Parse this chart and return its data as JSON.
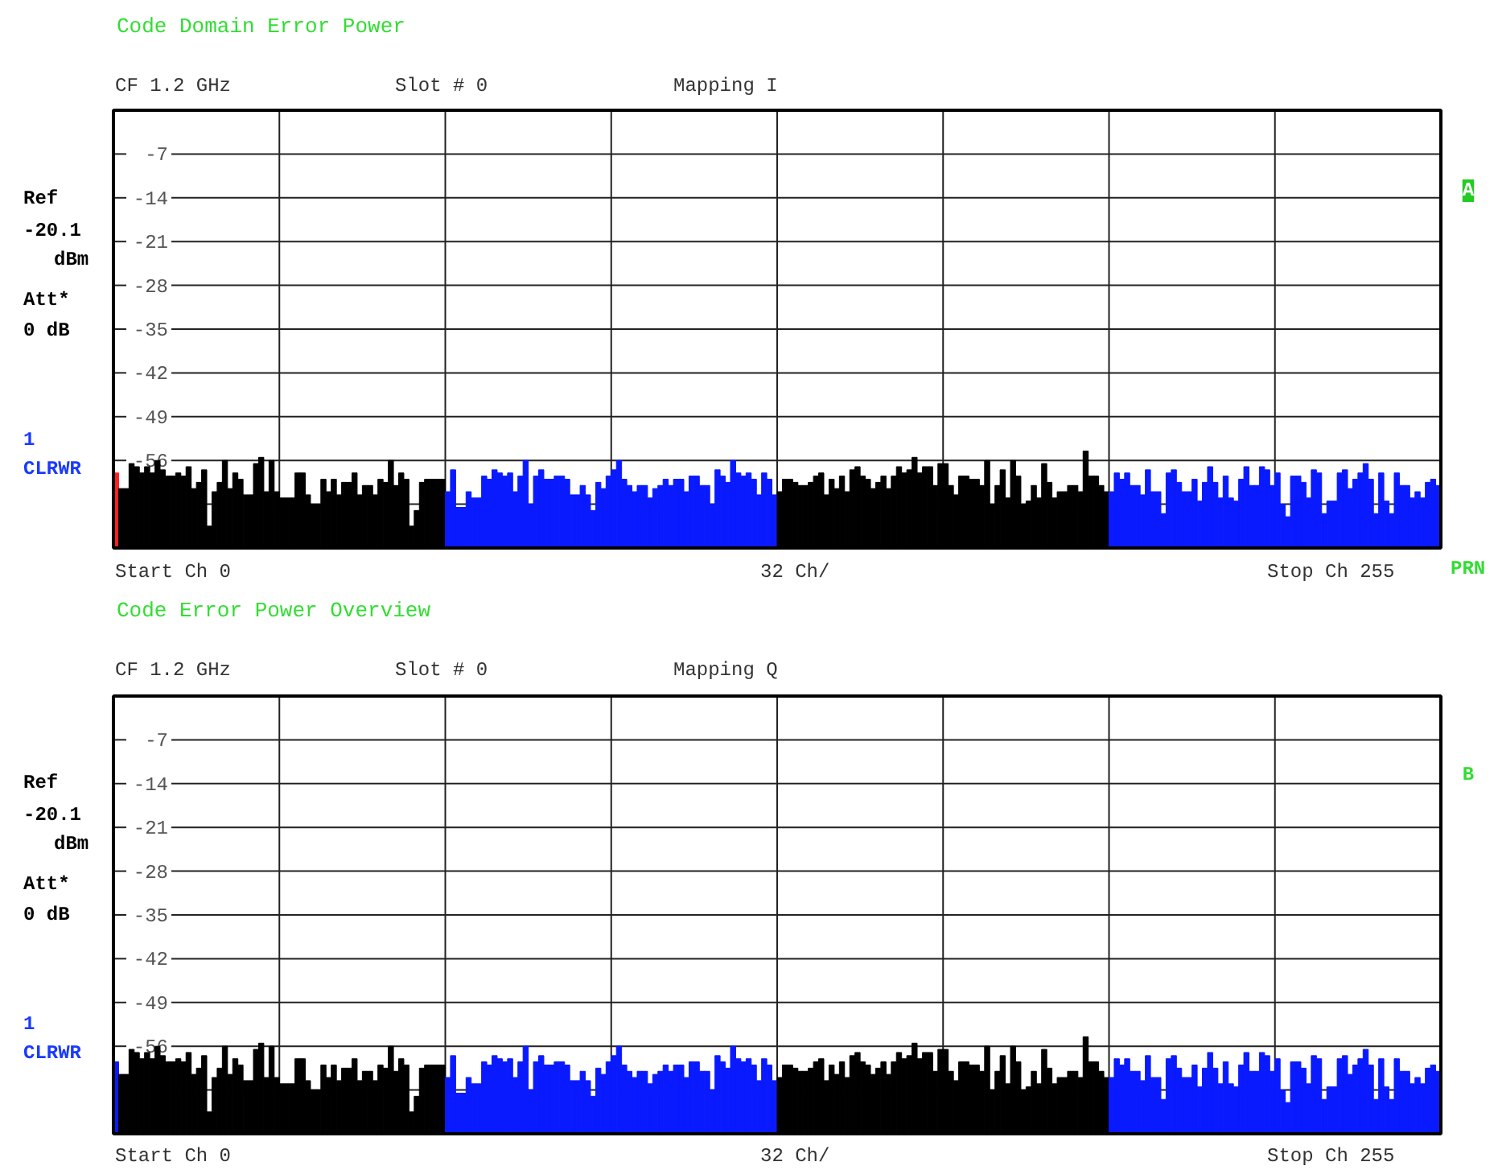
{
  "chart_data": [
    {
      "type": "bar",
      "title": "Code Domain Error Power",
      "annotations": [
        "CF 1.2 GHz",
        "Slot # 0",
        "Mapping    I",
        "Ref",
        "-20.1",
        "dBm",
        "Att*",
        "0 dB",
        "1",
        "CLRWR",
        "Start Ch 0",
        "32 Ch/",
        "Stop Ch 255",
        "A",
        "PRN"
      ],
      "categories": [
        null,
        null,
        null,
        null,
        null,
        null,
        null,
        null,
        null,
        null,
        null,
        null,
        null,
        null,
        null,
        null,
        null,
        null,
        null,
        null,
        null,
        null,
        null,
        null,
        null,
        null,
        null,
        null,
        null,
        null,
        null,
        null,
        null,
        null,
        null,
        null,
        null,
        null,
        null,
        null,
        null,
        null,
        null,
        null,
        null,
        null,
        null,
        null,
        null,
        null,
        null,
        null,
        null,
        null,
        null,
        null,
        null,
        null,
        null,
        null,
        null,
        null,
        null,
        null,
        null,
        null,
        null,
        null,
        null,
        null,
        null,
        null,
        null,
        null,
        null,
        null,
        null,
        null,
        null,
        null,
        null,
        null,
        null,
        null,
        null,
        null,
        null,
        null,
        null,
        null,
        null,
        null,
        null,
        null,
        null,
        null,
        null,
        null,
        null,
        null,
        null,
        null,
        null,
        null,
        null,
        null,
        null,
        null,
        null,
        null,
        null,
        null,
        null,
        null,
        null,
        null,
        null,
        null,
        null,
        null,
        null,
        null,
        null,
        null,
        null,
        null,
        null,
        null,
        null,
        null,
        null,
        null,
        null,
        null,
        null,
        null,
        null,
        null,
        null,
        null,
        null,
        null,
        null,
        null,
        null,
        null,
        null,
        null,
        null,
        null,
        null,
        null,
        null,
        null,
        null,
        null,
        null,
        null,
        null,
        null,
        null,
        null,
        null,
        null,
        null,
        null,
        null,
        null,
        null,
        null,
        null,
        null,
        null,
        null,
        null,
        null,
        null,
        null,
        null,
        null,
        null,
        null,
        null,
        null,
        null,
        null,
        null,
        null,
        null,
        null,
        null,
        null,
        null,
        null,
        null,
        null,
        null,
        null,
        null,
        null,
        null,
        null,
        null,
        null,
        null,
        null,
        null,
        null,
        null,
        null,
        null,
        null,
        null,
        null,
        null,
        null,
        null,
        null,
        null,
        null,
        null,
        null,
        null,
        null,
        null,
        null,
        null,
        null,
        null,
        null,
        null,
        null,
        null,
        null,
        null,
        null,
        null,
        null,
        null,
        null,
        null,
        null,
        null,
        null,
        null,
        null,
        null,
        null,
        null,
        null,
        null,
        null,
        null,
        null,
        null,
        null
      ],
      "base": [
        -70,
        -70,
        -70,
        -70,
        -70,
        -70,
        -70,
        -70,
        -70,
        -70,
        -70,
        -70,
        -70,
        -70,
        -70,
        -70,
        -70,
        -70,
        -70,
        -70,
        -70,
        -70,
        -70,
        -70,
        -70,
        -70,
        -70,
        -70,
        -70,
        -70,
        -70,
        -70,
        -70,
        -70,
        -70,
        -70,
        -70,
        -70,
        -70,
        -70,
        -70,
        -70,
        -70,
        -70,
        -70,
        -70,
        -70,
        -70,
        -70,
        -70,
        -70,
        -70,
        -70,
        -70,
        -70,
        -70,
        -70,
        -70,
        -70,
        -70,
        -70,
        -70,
        -70,
        -70,
        -70,
        -70,
        -70,
        -70,
        -70,
        -70,
        -70,
        -70,
        -70,
        -70,
        -70,
        -70,
        -70,
        -70,
        -70,
        -70,
        -70,
        -70,
        -70,
        -70,
        -70,
        -70,
        -70,
        -70,
        -70,
        -70,
        -70,
        -70,
        -70,
        -70,
        -70,
        -70,
        -70,
        -70,
        -70,
        -70,
        -70,
        -70,
        -70,
        -70,
        -70,
        -70,
        -70,
        -70,
        -70,
        -70,
        -70,
        -70,
        -70,
        -70,
        -70,
        -70,
        -70,
        -70,
        -70,
        -70,
        -70,
        -70,
        -70,
        -70,
        -70,
        -70,
        -70,
        -70,
        -70,
        -70,
        -70,
        -70,
        -70,
        -70,
        -70,
        -70,
        -70,
        -70,
        -70,
        -70,
        -70,
        -70,
        -70,
        -70,
        -70,
        -70,
        -70,
        -70,
        -70,
        -70,
        -70,
        -70,
        -70,
        -70,
        -70,
        -70,
        -70,
        -70,
        -70,
        -70,
        -70,
        -70,
        -70,
        -70,
        -70,
        -70,
        -70,
        -70,
        -70,
        -70,
        -70,
        -70,
        -70,
        -70,
        -70,
        -70,
        -70,
        -70,
        -70,
        -70,
        -70,
        -70,
        -70,
        -70,
        -70,
        -70,
        -70,
        -70,
        -70,
        -70,
        -70,
        -70,
        -70,
        -70,
        -70,
        -70,
        -70,
        -70,
        -70,
        -70,
        -70,
        -70,
        -70,
        -70,
        -70,
        -70,
        -70,
        -70,
        -70,
        -70,
        -70,
        -70,
        -70,
        -70,
        -70,
        -70,
        -70,
        -70,
        -70,
        -70,
        -70,
        -70,
        -70,
        -70,
        -70,
        -70,
        -70,
        -70,
        -70,
        -70,
        -70,
        -70,
        -70,
        -70,
        -70,
        -70,
        -70,
        -70,
        -70,
        -70,
        -70,
        -70,
        -70,
        -70,
        -70,
        -70,
        -70,
        -70,
        -70,
        -70,
        -70,
        -70,
        -70,
        -70,
        -70,
        -70
      ],
      "values": [
        12,
        9.5,
        9.5,
        13.5,
        13,
        12,
        13,
        12,
        14,
        12.5,
        11.5,
        11.5,
        12,
        11.5,
        13,
        9.5,
        10.5,
        12.5,
        3.5,
        9,
        10.5,
        14,
        9.5,
        12,
        11,
        8.5,
        8.5,
        13.5,
        14.5,
        9,
        14,
        9,
        8,
        8,
        8,
        12,
        12,
        8.5,
        7,
        7,
        11,
        9,
        11,
        8.5,
        10.5,
        10.5,
        12,
        8.5,
        10,
        10,
        8.5,
        11,
        10.5,
        14,
        10,
        12,
        11,
        3.5,
        6,
        10.5,
        11,
        11,
        11,
        11,
        9,
        12.5,
        6.5,
        6.5,
        9,
        8,
        8,
        11.5,
        11,
        12.5,
        12,
        11.5,
        12,
        9,
        11.5,
        14,
        7,
        11.5,
        12.5,
        11,
        11,
        11.5,
        11.5,
        11,
        8.5,
        8.5,
        10,
        8.5,
        6,
        10.5,
        9.5,
        11.5,
        12.5,
        14,
        11,
        10,
        9,
        10,
        10,
        8,
        9.5,
        10,
        11,
        10,
        11,
        11,
        9,
        11.5,
        11.5,
        10,
        10,
        7,
        12.5,
        11.5,
        10.5,
        14,
        12,
        11.5,
        12,
        11,
        8.5,
        12,
        11,
        8.5,
        9,
        11,
        11,
        10.5,
        10,
        10,
        10.5,
        11.5,
        12,
        8.5,
        11,
        9.5,
        11.5,
        9,
        12.5,
        13,
        11.5,
        11,
        9.5,
        10.5,
        11.5,
        9.5,
        11.5,
        13,
        12,
        12.5,
        14.5,
        12,
        13,
        13,
        10,
        13.5,
        13.5,
        10,
        8.5,
        11.5,
        11.5,
        11,
        11,
        10,
        14,
        7,
        10,
        12.5,
        8,
        14,
        11.5,
        7,
        7.5,
        10,
        8,
        13.5,
        10.5,
        8,
        9,
        9,
        10,
        10,
        9,
        15.5,
        11.5,
        11.5,
        10,
        9,
        9,
        12,
        11,
        12,
        10,
        10,
        8.5,
        12.5,
        9,
        9,
        5.5,
        12,
        12.5,
        10.5,
        9,
        9,
        11,
        7.5,
        10.5,
        13,
        10.5,
        8,
        11.5,
        8,
        7.5,
        11,
        13,
        10,
        10,
        13,
        12.5,
        10,
        12,
        7,
        5,
        11.5,
        11.5,
        10.5,
        8,
        12.5,
        12,
        5.5,
        7.5,
        7.5,
        12,
        12.5,
        9.5,
        11,
        12,
        13.5,
        11,
        5.5,
        12,
        7.5,
        5.5,
        12,
        10,
        10,
        8,
        9,
        8,
        10.5,
        11,
        10
      ],
      "colors": [
        "#ff2020",
        "#000000",
        "#000000",
        "#000000",
        "#000000",
        "#000000",
        "#000000",
        "#000000",
        "#000000",
        "#000000",
        "#000000",
        "#000000",
        "#000000",
        "#000000",
        "#000000",
        "#000000",
        "#000000",
        "#000000",
        "#000000",
        "#000000",
        "#000000",
        "#000000",
        "#000000",
        "#000000",
        "#000000",
        "#000000",
        "#000000",
        "#000000",
        "#000000",
        "#000000",
        "#000000",
        "#000000",
        "#000000",
        "#000000",
        "#000000",
        "#000000",
        "#000000",
        "#000000",
        "#000000",
        "#000000",
        "#000000",
        "#000000",
        "#000000",
        "#000000",
        "#000000",
        "#000000",
        "#000000",
        "#000000",
        "#000000",
        "#000000",
        "#000000",
        "#000000",
        "#000000",
        "#000000",
        "#000000",
        "#000000",
        "#000000",
        "#000000",
        "#000000",
        "#000000",
        "#000000",
        "#000000",
        "#000000",
        "#000000",
        "#0a1aff",
        "#0a1aff",
        "#0a1aff",
        "#0a1aff",
        "#0a1aff",
        "#0a1aff",
        "#0a1aff",
        "#0a1aff",
        "#0a1aff",
        "#0a1aff",
        "#0a1aff",
        "#0a1aff",
        "#0a1aff",
        "#0a1aff",
        "#0a1aff",
        "#0a1aff",
        "#0a1aff",
        "#0a1aff",
        "#0a1aff",
        "#0a1aff",
        "#0a1aff",
        "#0a1aff",
        "#0a1aff",
        "#0a1aff",
        "#0a1aff",
        "#0a1aff",
        "#0a1aff",
        "#0a1aff",
        "#0a1aff",
        "#0a1aff",
        "#0a1aff",
        "#0a1aff",
        "#0a1aff",
        "#0a1aff",
        "#0a1aff",
        "#0a1aff",
        "#0a1aff",
        "#0a1aff",
        "#0a1aff",
        "#0a1aff",
        "#0a1aff",
        "#0a1aff",
        "#0a1aff",
        "#0a1aff",
        "#0a1aff",
        "#0a1aff",
        "#0a1aff",
        "#0a1aff",
        "#0a1aff",
        "#0a1aff",
        "#0a1aff",
        "#0a1aff",
        "#0a1aff",
        "#0a1aff",
        "#0a1aff",
        "#0a1aff",
        "#0a1aff",
        "#0a1aff",
        "#0a1aff",
        "#0a1aff",
        "#0a1aff",
        "#0a1aff",
        "#0a1aff",
        "#0a1aff",
        "#000000",
        "#000000",
        "#000000",
        "#000000",
        "#000000",
        "#000000",
        "#000000",
        "#000000",
        "#000000",
        "#000000",
        "#000000",
        "#000000",
        "#000000",
        "#000000",
        "#000000",
        "#000000",
        "#000000",
        "#000000",
        "#000000",
        "#000000",
        "#000000",
        "#000000",
        "#000000",
        "#000000",
        "#000000",
        "#000000",
        "#000000",
        "#000000",
        "#000000",
        "#000000",
        "#000000",
        "#000000",
        "#000000",
        "#000000",
        "#000000",
        "#000000",
        "#000000",
        "#000000",
        "#000000",
        "#000000",
        "#000000",
        "#000000",
        "#000000",
        "#000000",
        "#000000",
        "#000000",
        "#000000",
        "#000000",
        "#000000",
        "#000000",
        "#000000",
        "#000000",
        "#000000",
        "#000000",
        "#000000",
        "#000000",
        "#000000",
        "#000000",
        "#000000",
        "#000000",
        "#000000",
        "#000000",
        "#000000",
        "#000000",
        "#0a1aff",
        "#0a1aff",
        "#0a1aff",
        "#0a1aff",
        "#0a1aff",
        "#0a1aff",
        "#0a1aff",
        "#0a1aff",
        "#0a1aff",
        "#0a1aff",
        "#0a1aff",
        "#0a1aff",
        "#0a1aff",
        "#0a1aff",
        "#0a1aff",
        "#0a1aff",
        "#0a1aff",
        "#0a1aff",
        "#0a1aff",
        "#0a1aff",
        "#0a1aff",
        "#0a1aff",
        "#0a1aff",
        "#0a1aff",
        "#0a1aff",
        "#0a1aff",
        "#0a1aff",
        "#0a1aff",
        "#0a1aff",
        "#0a1aff",
        "#0a1aff",
        "#0a1aff",
        "#0a1aff",
        "#0a1aff",
        "#0a1aff",
        "#0a1aff",
        "#0a1aff",
        "#0a1aff",
        "#0a1aff",
        "#0a1aff",
        "#0a1aff",
        "#0a1aff",
        "#0a1aff",
        "#0a1aff",
        "#0a1aff",
        "#0a1aff",
        "#0a1aff",
        "#0a1aff",
        "#0a1aff",
        "#0a1aff",
        "#0a1aff",
        "#0a1aff",
        "#0a1aff",
        "#0a1aff",
        "#0a1aff",
        "#0a1aff",
        "#0a1aff",
        "#0a1aff",
        "#0a1aff",
        "#0a1aff",
        "#0a1aff",
        "#0a1aff",
        "#0a1aff",
        "#0a1aff"
      ],
      "ylim": [
        -70,
        0
      ],
      "yticks": [
        -7,
        -14,
        -21,
        -28,
        -35,
        -42,
        -49,
        -56,
        {
          "value": -63,
          "label": null
        }
      ],
      "grid": true,
      "tick_labels": "y"
    },
    {
      "type": "bar",
      "title": "Code Error Power Overview",
      "annotations": [
        "CF 1.2 GHz",
        "Slot # 0",
        "Mapping    Q",
        "Ref",
        "-20.1",
        "dBm",
        "Att*",
        "0 dB",
        "1",
        "CLRWR",
        "Start Ch 0",
        "32 Ch/",
        "Stop Ch 255",
        "B"
      ],
      "categories": [
        null,
        null,
        null,
        null,
        null,
        null,
        null,
        null,
        null,
        null,
        null,
        null,
        null,
        null,
        null,
        null,
        null,
        null,
        null,
        null,
        null,
        null,
        null,
        null,
        null,
        null,
        null,
        null,
        null,
        null,
        null,
        null,
        null,
        null,
        null,
        null,
        null,
        null,
        null,
        null,
        null,
        null,
        null,
        null,
        null,
        null,
        null,
        null,
        null,
        null,
        null,
        null,
        null,
        null,
        null,
        null,
        null,
        null,
        null,
        null,
        null,
        null,
        null,
        null,
        null,
        null,
        null,
        null,
        null,
        null,
        null,
        null,
        null,
        null,
        null,
        null,
        null,
        null,
        null,
        null,
        null,
        null,
        null,
        null,
        null,
        null,
        null,
        null,
        null,
        null,
        null,
        null,
        null,
        null,
        null,
        null,
        null,
        null,
        null,
        null,
        null,
        null,
        null,
        null,
        null,
        null,
        null,
        null,
        null,
        null,
        null,
        null,
        null,
        null,
        null,
        null,
        null,
        null,
        null,
        null,
        null,
        null,
        null,
        null,
        null,
        null,
        null,
        null,
        null,
        null,
        null,
        null,
        null,
        null,
        null,
        null,
        null,
        null,
        null,
        null,
        null,
        null,
        null,
        null,
        null,
        null,
        null,
        null,
        null,
        null,
        null,
        null,
        null,
        null,
        null,
        null,
        null,
        null,
        null,
        null,
        null,
        null,
        null,
        null,
        null,
        null,
        null,
        null,
        null,
        null,
        null,
        null,
        null,
        null,
        null,
        null,
        null,
        null,
        null,
        null,
        null,
        null,
        null,
        null,
        null,
        null,
        null,
        null,
        null,
        null,
        null,
        null,
        null,
        null,
        null,
        null,
        null,
        null,
        null,
        null,
        null,
        null,
        null,
        null,
        null,
        null,
        null,
        null,
        null,
        null,
        null,
        null,
        null,
        null,
        null,
        null,
        null,
        null,
        null,
        null,
        null,
        null,
        null,
        null,
        null,
        null,
        null,
        null,
        null,
        null,
        null,
        null,
        null,
        null,
        null,
        null,
        null,
        null,
        null,
        null,
        null,
        null,
        null,
        null,
        null,
        null,
        null,
        null,
        null,
        null,
        null,
        null,
        null,
        null,
        null,
        null
      ],
      "base": [
        -70,
        -70,
        -70,
        -70,
        -70,
        -70,
        -70,
        -70,
        -70,
        -70,
        -70,
        -70,
        -70,
        -70,
        -70,
        -70,
        -70,
        -70,
        -70,
        -70,
        -70,
        -70,
        -70,
        -70,
        -70,
        -70,
        -70,
        -70,
        -70,
        -70,
        -70,
        -70,
        -70,
        -70,
        -70,
        -70,
        -70,
        -70,
        -70,
        -70,
        -70,
        -70,
        -70,
        -70,
        -70,
        -70,
        -70,
        -70,
        -70,
        -70,
        -70,
        -70,
        -70,
        -70,
        -70,
        -70,
        -70,
        -70,
        -70,
        -70,
        -70,
        -70,
        -70,
        -70,
        -70,
        -70,
        -70,
        -70,
        -70,
        -70,
        -70,
        -70,
        -70,
        -70,
        -70,
        -70,
        -70,
        -70,
        -70,
        -70,
        -70,
        -70,
        -70,
        -70,
        -70,
        -70,
        -70,
        -70,
        -70,
        -70,
        -70,
        -70,
        -70,
        -70,
        -70,
        -70,
        -70,
        -70,
        -70,
        -70,
        -70,
        -70,
        -70,
        -70,
        -70,
        -70,
        -70,
        -70,
        -70,
        -70,
        -70,
        -70,
        -70,
        -70,
        -70,
        -70,
        -70,
        -70,
        -70,
        -70,
        -70,
        -70,
        -70,
        -70,
        -70,
        -70,
        -70,
        -70,
        -70,
        -70,
        -70,
        -70,
        -70,
        -70,
        -70,
        -70,
        -70,
        -70,
        -70,
        -70,
        -70,
        -70,
        -70,
        -70,
        -70,
        -70,
        -70,
        -70,
        -70,
        -70,
        -70,
        -70,
        -70,
        -70,
        -70,
        -70,
        -70,
        -70,
        -70,
        -70,
        -70,
        -70,
        -70,
        -70,
        -70,
        -70,
        -70,
        -70,
        -70,
        -70,
        -70,
        -70,
        -70,
        -70,
        -70,
        -70,
        -70,
        -70,
        -70,
        -70,
        -70,
        -70,
        -70,
        -70,
        -70,
        -70,
        -70,
        -70,
        -70,
        -70,
        -70,
        -70,
        -70,
        -70,
        -70,
        -70,
        -70,
        -70,
        -70,
        -70,
        -70,
        -70,
        -70,
        -70,
        -70,
        -70,
        -70,
        -70,
        -70,
        -70,
        -70,
        -70,
        -70,
        -70,
        -70,
        -70,
        -70,
        -70,
        -70,
        -70,
        -70,
        -70,
        -70,
        -70,
        -70,
        -70,
        -70,
        -70,
        -70,
        -70,
        -70,
        -70,
        -70,
        -70,
        -70,
        -70,
        -70,
        -70,
        -70,
        -70,
        -70,
        -70,
        -70,
        -70,
        -70,
        -70,
        -70,
        -70,
        -70,
        -70,
        -70,
        -70,
        -70,
        -70,
        -70,
        -70
      ],
      "values": [
        11.5,
        9.5,
        9.5,
        13.5,
        13,
        12,
        13,
        12,
        14,
        12.5,
        11.5,
        11.5,
        12,
        11.5,
        13,
        9.5,
        10.5,
        12.5,
        3.5,
        9,
        10.5,
        14,
        9.5,
        12,
        11,
        8.5,
        8.5,
        13.5,
        14.5,
        9,
        14,
        9,
        8,
        8,
        8,
        12,
        12,
        8.5,
        7,
        7,
        11,
        9,
        11,
        8.5,
        10.5,
        10.5,
        12,
        8.5,
        10,
        10,
        8.5,
        11,
        10.5,
        14,
        10,
        12,
        11,
        3.5,
        6,
        10.5,
        11,
        11,
        11,
        11,
        9,
        12.5,
        6.5,
        6.5,
        9,
        8,
        8,
        11.5,
        11,
        12.5,
        12,
        11.5,
        12,
        9,
        11.5,
        14,
        7,
        11.5,
        12.5,
        11,
        11,
        11.5,
        11.5,
        11,
        8.5,
        8.5,
        10,
        8.5,
        6,
        10.5,
        9.5,
        11.5,
        12.5,
        14,
        11,
        10,
        9,
        10,
        10,
        8,
        9.5,
        10,
        11,
        10,
        11,
        11,
        9,
        11.5,
        11.5,
        10,
        10,
        7,
        12.5,
        11.5,
        10.5,
        14,
        12,
        11.5,
        12,
        11,
        8.5,
        12,
        11,
        8.5,
        9,
        11,
        11,
        10.5,
        10,
        10,
        10.5,
        11.5,
        12,
        8.5,
        11,
        9.5,
        11.5,
        9,
        12.5,
        13,
        11.5,
        11,
        9.5,
        10.5,
        11.5,
        9.5,
        11.5,
        13,
        12,
        12.5,
        14.5,
        12,
        13,
        13,
        10,
        13.5,
        13.5,
        10,
        8.5,
        11.5,
        11.5,
        11,
        11,
        10,
        14,
        7,
        10,
        12.5,
        8,
        14,
        11.5,
        7,
        7.5,
        10,
        8,
        13.5,
        10.5,
        8,
        9,
        9,
        10,
        10,
        9,
        15.5,
        11.5,
        11.5,
        10,
        9,
        9,
        12,
        11,
        12,
        10,
        10,
        8.5,
        12.5,
        9,
        9,
        5.5,
        12,
        12.5,
        10.5,
        9,
        9,
        11,
        7.5,
        10.5,
        13,
        10.5,
        8,
        11.5,
        8,
        7.5,
        11,
        13,
        10,
        10,
        13,
        12.5,
        10,
        12,
        7,
        5,
        11.5,
        11.5,
        10.5,
        8,
        12.5,
        12,
        5.5,
        7.5,
        7.5,
        12,
        12.5,
        9.5,
        11,
        12,
        13.5,
        11,
        5.5,
        12,
        7.5,
        5.5,
        12,
        10,
        10,
        8,
        9,
        8,
        10.5,
        11,
        10
      ],
      "colors": [
        "#0a1aff",
        "#000000",
        "#000000",
        "#000000",
        "#000000",
        "#000000",
        "#000000",
        "#000000",
        "#000000",
        "#000000",
        "#000000",
        "#000000",
        "#000000",
        "#000000",
        "#000000",
        "#000000",
        "#000000",
        "#000000",
        "#000000",
        "#000000",
        "#000000",
        "#000000",
        "#000000",
        "#000000",
        "#000000",
        "#000000",
        "#000000",
        "#000000",
        "#000000",
        "#000000",
        "#000000",
        "#000000",
        "#000000",
        "#000000",
        "#000000",
        "#000000",
        "#000000",
        "#000000",
        "#000000",
        "#000000",
        "#000000",
        "#000000",
        "#000000",
        "#000000",
        "#000000",
        "#000000",
        "#000000",
        "#000000",
        "#000000",
        "#000000",
        "#000000",
        "#000000",
        "#000000",
        "#000000",
        "#000000",
        "#000000",
        "#000000",
        "#000000",
        "#000000",
        "#000000",
        "#000000",
        "#000000",
        "#000000",
        "#000000",
        "#0a1aff",
        "#0a1aff",
        "#0a1aff",
        "#0a1aff",
        "#0a1aff",
        "#0a1aff",
        "#0a1aff",
        "#0a1aff",
        "#0a1aff",
        "#0a1aff",
        "#0a1aff",
        "#0a1aff",
        "#0a1aff",
        "#0a1aff",
        "#0a1aff",
        "#0a1aff",
        "#0a1aff",
        "#0a1aff",
        "#0a1aff",
        "#0a1aff",
        "#0a1aff",
        "#0a1aff",
        "#0a1aff",
        "#0a1aff",
        "#0a1aff",
        "#0a1aff",
        "#0a1aff",
        "#0a1aff",
        "#0a1aff",
        "#0a1aff",
        "#0a1aff",
        "#0a1aff",
        "#0a1aff",
        "#0a1aff",
        "#0a1aff",
        "#0a1aff",
        "#0a1aff",
        "#0a1aff",
        "#0a1aff",
        "#0a1aff",
        "#0a1aff",
        "#0a1aff",
        "#0a1aff",
        "#0a1aff",
        "#0a1aff",
        "#0a1aff",
        "#0a1aff",
        "#0a1aff",
        "#0a1aff",
        "#0a1aff",
        "#0a1aff",
        "#0a1aff",
        "#0a1aff",
        "#0a1aff",
        "#0a1aff",
        "#0a1aff",
        "#0a1aff",
        "#0a1aff",
        "#0a1aff",
        "#0a1aff",
        "#0a1aff",
        "#0a1aff",
        "#0a1aff",
        "#0a1aff",
        "#000000",
        "#000000",
        "#000000",
        "#000000",
        "#000000",
        "#000000",
        "#000000",
        "#000000",
        "#000000",
        "#000000",
        "#000000",
        "#000000",
        "#000000",
        "#000000",
        "#000000",
        "#000000",
        "#000000",
        "#000000",
        "#000000",
        "#000000",
        "#000000",
        "#000000",
        "#000000",
        "#000000",
        "#000000",
        "#000000",
        "#000000",
        "#000000",
        "#000000",
        "#000000",
        "#000000",
        "#000000",
        "#000000",
        "#000000",
        "#000000",
        "#000000",
        "#000000",
        "#000000",
        "#000000",
        "#000000",
        "#000000",
        "#000000",
        "#000000",
        "#000000",
        "#000000",
        "#000000",
        "#000000",
        "#000000",
        "#000000",
        "#000000",
        "#000000",
        "#000000",
        "#000000",
        "#000000",
        "#000000",
        "#000000",
        "#000000",
        "#000000",
        "#000000",
        "#000000",
        "#000000",
        "#000000",
        "#000000",
        "#000000",
        "#0a1aff",
        "#0a1aff",
        "#0a1aff",
        "#0a1aff",
        "#0a1aff",
        "#0a1aff",
        "#0a1aff",
        "#0a1aff",
        "#0a1aff",
        "#0a1aff",
        "#0a1aff",
        "#0a1aff",
        "#0a1aff",
        "#0a1aff",
        "#0a1aff",
        "#0a1aff",
        "#0a1aff",
        "#0a1aff",
        "#0a1aff",
        "#0a1aff",
        "#0a1aff",
        "#0a1aff",
        "#0a1aff",
        "#0a1aff",
        "#0a1aff",
        "#0a1aff",
        "#0a1aff",
        "#0a1aff",
        "#0a1aff",
        "#0a1aff",
        "#0a1aff",
        "#0a1aff",
        "#0a1aff",
        "#0a1aff",
        "#0a1aff",
        "#0a1aff",
        "#0a1aff",
        "#0a1aff",
        "#0a1aff",
        "#0a1aff",
        "#0a1aff",
        "#0a1aff",
        "#0a1aff",
        "#0a1aff",
        "#0a1aff",
        "#0a1aff",
        "#0a1aff",
        "#0a1aff",
        "#0a1aff",
        "#0a1aff",
        "#0a1aff",
        "#0a1aff",
        "#0a1aff",
        "#0a1aff",
        "#0a1aff",
        "#0a1aff",
        "#0a1aff",
        "#0a1aff",
        "#0a1aff",
        "#0a1aff",
        "#0a1aff",
        "#0a1aff",
        "#0a1aff",
        "#0a1aff"
      ],
      "ylim": [
        -70,
        0
      ],
      "yticks": [
        -7,
        -14,
        -21,
        -28,
        -35,
        -42,
        -49,
        -56,
        {
          "value": -63,
          "label": null
        }
      ],
      "grid": true,
      "tick_labels": "y"
    }
  ]
}
